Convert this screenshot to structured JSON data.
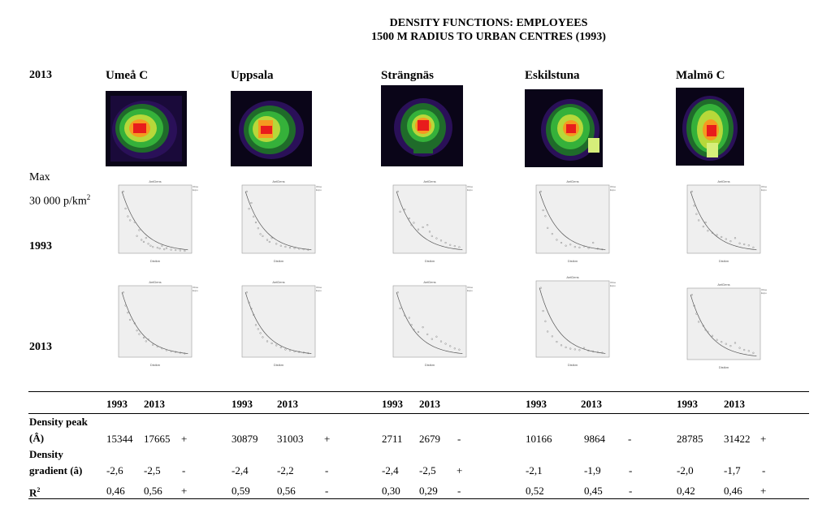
{
  "title_line1": "DENSITY FUNCTIONS: EMPLOYEES",
  "title_line2": "1500 M RADIUS TO URBAN CENTRES (1993)",
  "row_label_top": "2013",
  "max_label_line1": "Max",
  "max_label_line2": "30 000 p/km",
  "max_label_sup": "2",
  "row_label_1993": "1993",
  "row_label_2013": "2013",
  "cities": [
    "Umeå C",
    "Uppsala",
    "Strängnäs",
    "Eskilstuna",
    "Malmö C"
  ],
  "colors": {
    "plot_bg": "#efefef",
    "curve": "#555555",
    "points": "#888888"
  },
  "chart_data": [
    {
      "type": "scatter",
      "city": "Umeå C",
      "year": "1993",
      "title": "AntDens",
      "xlabel": "Distkm",
      "legend": [
        "Observed",
        "Exponential"
      ],
      "x": [
        0.05,
        0.1,
        0.15,
        0.2,
        0.3,
        0.35,
        0.4,
        0.45,
        0.5,
        0.55,
        0.6,
        0.65,
        0.7,
        0.8,
        0.85,
        0.9,
        0.95,
        1.0,
        1.1,
        1.2,
        1.3,
        1.4
      ],
      "y": [
        15344,
        11000,
        9000,
        8000,
        7500,
        4000,
        5500,
        3000,
        2500,
        3500,
        2000,
        1500,
        1200,
        1000,
        800,
        1500,
        600,
        900,
        500,
        400,
        300,
        200
      ]
    },
    {
      "type": "scatter",
      "city": "Uppsala",
      "year": "1993",
      "title": "AntDens",
      "xlabel": "Distkm",
      "legend": [
        "Observed",
        "Exponential"
      ],
      "x": [
        0.05,
        0.1,
        0.15,
        0.2,
        0.25,
        0.3,
        0.35,
        0.4,
        0.5,
        0.55,
        0.6,
        0.7,
        0.8,
        0.9,
        1.0,
        1.1,
        1.2,
        1.3,
        1.4
      ],
      "y": [
        30879,
        22000,
        25000,
        18000,
        15000,
        12000,
        9000,
        8000,
        6000,
        5000,
        7000,
        4000,
        3000,
        2500,
        2000,
        1800,
        1500,
        1200,
        1000
      ]
    },
    {
      "type": "scatter",
      "city": "Strängnäs",
      "year": "1993",
      "title": "AntDens",
      "xlabel": "Distkm",
      "legend": [
        "Observed",
        "Exponential"
      ],
      "x": [
        0.05,
        0.1,
        0.2,
        0.3,
        0.35,
        0.4,
        0.5,
        0.6,
        0.7,
        0.75,
        0.8,
        0.9,
        1.0,
        1.1,
        1.2,
        1.3,
        1.4
      ],
      "y": [
        2711,
        1800,
        1900,
        1500,
        1200,
        1300,
        1000,
        1100,
        1200,
        900,
        700,
        600,
        500,
        400,
        300,
        250,
        200
      ]
    },
    {
      "type": "scatter",
      "city": "Eskilstuna",
      "year": "1993",
      "title": "AntDens",
      "xlabel": "Distkm",
      "legend": [
        "Observed",
        "Exponential"
      ],
      "x": [
        0.05,
        0.1,
        0.15,
        0.2,
        0.3,
        0.4,
        0.5,
        0.6,
        0.7,
        0.8,
        0.9,
        1.0,
        1.1,
        1.2,
        1.3,
        1.4
      ],
      "y": [
        10166,
        7000,
        6000,
        4000,
        3000,
        2000,
        1500,
        1000,
        1200,
        800,
        700,
        900,
        600,
        1500,
        500,
        400
      ]
    },
    {
      "type": "scatter",
      "city": "Malmö C",
      "year": "1993",
      "title": "AntDens",
      "xlabel": "Distkm",
      "legend": [
        "Observed",
        "Exponential"
      ],
      "x": [
        0.05,
        0.1,
        0.15,
        0.2,
        0.3,
        0.35,
        0.4,
        0.5,
        0.6,
        0.7,
        0.8,
        0.9,
        1.0,
        1.1,
        1.2,
        1.3,
        1.4
      ],
      "y": [
        28785,
        22000,
        18000,
        15000,
        12000,
        14000,
        10000,
        9000,
        8000,
        7000,
        6000,
        5000,
        6500,
        4000,
        3500,
        3000,
        2000
      ]
    },
    {
      "type": "scatter",
      "city": "Umeå C",
      "year": "2013",
      "title": "AntDens",
      "xlabel": "Distkm",
      "legend": [
        "Observed",
        "Exponential"
      ],
      "x": [
        0.05,
        0.1,
        0.15,
        0.2,
        0.3,
        0.35,
        0.4,
        0.5,
        0.55,
        0.6,
        0.7,
        0.8,
        0.9,
        1.0,
        1.1,
        1.2,
        1.3,
        1.4
      ],
      "y": [
        17665,
        14000,
        12000,
        10000,
        9000,
        7000,
        6000,
        5000,
        4000,
        4500,
        3000,
        2500,
        2000,
        1500,
        1200,
        1000,
        800,
        600
      ]
    },
    {
      "type": "scatter",
      "city": "Uppsala",
      "year": "2013",
      "title": "AntDens",
      "xlabel": "Distkm",
      "legend": [
        "Observed",
        "Exponential"
      ],
      "x": [
        0.05,
        0.1,
        0.15,
        0.2,
        0.25,
        0.3,
        0.35,
        0.4,
        0.5,
        0.6,
        0.7,
        0.8,
        0.9,
        1.0,
        1.1,
        1.2,
        1.3,
        1.4
      ],
      "y": [
        31003,
        26000,
        23000,
        20000,
        15000,
        13000,
        11000,
        9000,
        7000,
        6000,
        5000,
        4000,
        3000,
        2500,
        2000,
        1800,
        1500,
        1200
      ]
    },
    {
      "type": "scatter",
      "city": "Strängnäs",
      "year": "2013",
      "title": "AntDens",
      "xlabel": "Distkm",
      "legend": [
        "Observed",
        "Exponential"
      ],
      "x": [
        0.05,
        0.1,
        0.2,
        0.3,
        0.35,
        0.4,
        0.5,
        0.6,
        0.7,
        0.8,
        0.9,
        1.0,
        1.1,
        1.2,
        1.3,
        1.4
      ],
      "y": [
        2679,
        2000,
        1700,
        1600,
        1300,
        1100,
        1000,
        1200,
        900,
        700,
        800,
        600,
        500,
        400,
        300,
        250
      ]
    },
    {
      "type": "scatter",
      "city": "Eskilstuna",
      "year": "2013",
      "title": "AntDens",
      "xlabel": "Distkm",
      "legend": [
        "Observed",
        "Exponential"
      ],
      "x": [
        0.05,
        0.1,
        0.15,
        0.2,
        0.3,
        0.4,
        0.5,
        0.6,
        0.7,
        0.8,
        0.9,
        1.0,
        1.1,
        1.2,
        1.3,
        1.4
      ],
      "y": [
        9864,
        6500,
        5000,
        3500,
        2800,
        2000,
        1500,
        1200,
        1000,
        900,
        800,
        1100,
        700,
        600,
        500,
        400
      ]
    },
    {
      "type": "scatter",
      "city": "Malmö C",
      "year": "2013",
      "title": "AntDens",
      "xlabel": "Distkm",
      "legend": [
        "Observed",
        "Exponential"
      ],
      "x": [
        0.05,
        0.1,
        0.15,
        0.2,
        0.3,
        0.35,
        0.4,
        0.5,
        0.6,
        0.7,
        0.8,
        0.9,
        1.0,
        1.1,
        1.2,
        1.3,
        1.4
      ],
      "y": [
        31422,
        26000,
        22000,
        18000,
        16000,
        14000,
        13000,
        11000,
        9000,
        8000,
        7000,
        6000,
        7500,
        5000,
        4000,
        3500,
        2500
      ]
    }
  ],
  "table": {
    "year_headers": [
      "1993",
      "2013"
    ],
    "label_density_peak_l1": "Density peak",
    "label_density_peak_l2": "(Â)",
    "label_gradient_l1": "Density",
    "label_gradient_l2": "gradient (â)",
    "label_r": "R",
    "label_r_sup": "2",
    "rows": {
      "density_peak": [
        {
          "v1993": "15344",
          "v2013": "17665",
          "sign": "+"
        },
        {
          "v1993": "30879",
          "v2013": "31003",
          "sign": "+"
        },
        {
          "v1993": "2711",
          "v2013": "2679",
          "sign": "-"
        },
        {
          "v1993": "10166",
          "v2013": "9864",
          "sign": "-"
        },
        {
          "v1993": "28785",
          "v2013": "31422",
          "sign": "+"
        }
      ],
      "gradient": [
        {
          "v1993": "-2,6",
          "v2013": "-2,5",
          "sign": "-"
        },
        {
          "v1993": "-2,4",
          "v2013": "-2,2",
          "sign": "-"
        },
        {
          "v1993": "-2,4",
          "v2013": "-2,5",
          "sign": "+"
        },
        {
          "v1993": "-2,1",
          "v2013": "-1,9",
          "sign": "-"
        },
        {
          "v1993": "-2,0",
          "v2013": "-1,7",
          "sign": "-"
        }
      ],
      "r2": [
        {
          "v1993": "0,46",
          "v2013": "0,56",
          "sign": "+"
        },
        {
          "v1993": "0,59",
          "v2013": "0,56",
          "sign": "-"
        },
        {
          "v1993": "0,30",
          "v2013": "0,29",
          "sign": "-"
        },
        {
          "v1993": "0,52",
          "v2013": "0,45",
          "sign": "-"
        },
        {
          "v1993": "0,42",
          "v2013": "0,46",
          "sign": "+"
        }
      ]
    }
  }
}
